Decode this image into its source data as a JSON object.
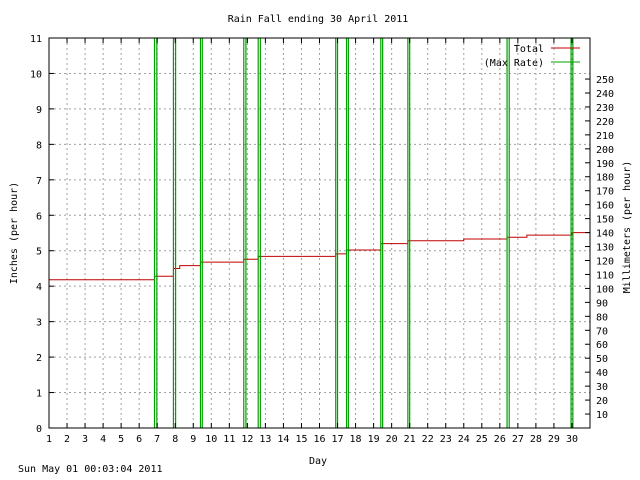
{
  "chart_data": {
    "type": "line",
    "title": "Rain Fall ending 30 April 2011",
    "xlabel": "Day",
    "ylabel": "Inches (per hour)",
    "y2label": "Millimeters (per hour)",
    "xlim": [
      1,
      31
    ],
    "ylim": [
      0,
      11
    ],
    "y2lim": [
      0,
      279.4
    ],
    "xticks": [
      "1",
      "2",
      "3",
      "4",
      "5",
      "6",
      "7",
      "8",
      "9",
      "10",
      "11",
      "12",
      "13",
      "14",
      "15",
      "16",
      "17",
      "18",
      "19",
      "20",
      "21",
      "22",
      "23",
      "24",
      "25",
      "26",
      "27",
      "28",
      "29",
      "30"
    ],
    "yticks": [
      "0",
      "1",
      "2",
      "3",
      "4",
      "5",
      "6",
      "7",
      "8",
      "9",
      "10",
      "11"
    ],
    "y2ticks": [
      "10",
      "20",
      "30",
      "40",
      "50",
      "60",
      "70",
      "80",
      "90",
      "100",
      "110",
      "120",
      "130",
      "140",
      "150",
      "160",
      "170",
      "180",
      "190",
      "200",
      "210",
      "220",
      "230",
      "240",
      "250"
    ],
    "grid": true,
    "legend_position": "top-right",
    "series": [
      {
        "name": "Total",
        "color": "#c00000",
        "style": "step",
        "x": [
          1.0,
          6.85,
          7.9,
          8.25,
          9.4,
          11.8,
          12.6,
          16.9,
          17.5,
          19.4,
          20.9,
          24.0,
          26.4,
          27.5,
          30.0,
          31.0
        ],
        "y": [
          4.18,
          4.28,
          4.5,
          4.58,
          4.68,
          4.76,
          4.84,
          4.91,
          5.02,
          5.2,
          5.28,
          5.33,
          5.38,
          5.44,
          5.51,
          5.51
        ]
      },
      {
        "name": "(Max Rate)",
        "color": "#00a000",
        "style": "spikes",
        "x": [
          6.85,
          6.98,
          7.9,
          8.02,
          9.4,
          9.5,
          11.8,
          11.92,
          12.6,
          12.72,
          16.9,
          17.0,
          17.5,
          17.6,
          19.4,
          19.5,
          20.9,
          21.0,
          26.4,
          26.52,
          29.95,
          30.05
        ],
        "y": [
          11,
          11,
          11,
          11,
          11,
          11,
          11,
          11,
          11,
          11,
          11,
          11,
          11,
          11,
          11,
          11,
          11,
          11,
          11,
          11,
          11,
          11
        ]
      }
    ]
  },
  "footer": {
    "timestamp": "Sun May 01 00:03:04 2011"
  }
}
